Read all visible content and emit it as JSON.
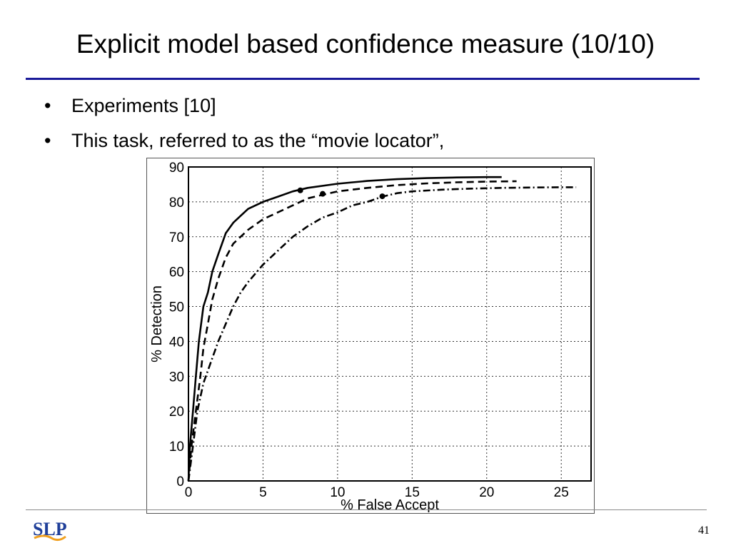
{
  "slide": {
    "title": "Explicit model based confidence measure (10/10)",
    "bullets": [
      {
        "text": "Experiments [10]"
      },
      {
        "text": "This task, referred to as the “movie locator”,"
      }
    ],
    "page_number": "41",
    "logo": {
      "icon": "slp-logo-icon",
      "text": "SLP"
    }
  },
  "chart_data": {
    "type": "line",
    "xlabel": "% False Accept",
    "ylabel": "% Detection",
    "xlim": [
      0,
      27
    ],
    "ylim": [
      0,
      90
    ],
    "xticks": [
      0,
      5,
      10,
      15,
      20,
      25
    ],
    "yticks": [
      0,
      10,
      20,
      30,
      40,
      50,
      60,
      70,
      80,
      90
    ],
    "grid": true,
    "series": [
      {
        "style": "solid",
        "color": "#000000",
        "x": [
          0,
          0.1,
          0.3,
          0.5,
          0.7,
          1.0,
          1.3,
          1.6,
          2.0,
          2.5,
          3.0,
          3.5,
          4.0,
          4.5,
          5.0,
          6.0,
          7.0,
          8.0,
          10.0,
          12.0,
          14.0,
          16.0,
          18.0,
          20.0,
          21.0
        ],
        "y": [
          0,
          10,
          20,
          30,
          40,
          50,
          54,
          60,
          65,
          71,
          74,
          76,
          78,
          79,
          80,
          81.5,
          83,
          84,
          85.2,
          86,
          86.5,
          86.8,
          87,
          87.1,
          87.1
        ],
        "markers": [
          {
            "x": 7.5,
            "y": 83.3
          }
        ]
      },
      {
        "style": "dashed",
        "color": "#000000",
        "x": [
          0,
          0.2,
          0.5,
          0.8,
          1.0,
          1.3,
          1.6,
          2.0,
          2.5,
          3.0,
          3.5,
          4.0,
          5.0,
          6.0,
          7.0,
          8.0,
          9.0,
          10.0,
          12.0,
          14.0,
          16.0,
          18.0,
          20.0,
          22.0
        ],
        "y": [
          0,
          10,
          20,
          30,
          38,
          45,
          52,
          58,
          64,
          68,
          70,
          72,
          75,
          77,
          79,
          81,
          82,
          83,
          84,
          84.8,
          85.3,
          85.6,
          85.8,
          85.9
        ],
        "markers": [
          {
            "x": 9.0,
            "y": 82.3
          }
        ]
      },
      {
        "style": "dashdot",
        "color": "#000000",
        "x": [
          0,
          0.3,
          0.6,
          1.0,
          1.5,
          2.0,
          2.5,
          3.0,
          3.5,
          4.0,
          5.0,
          6.0,
          7.0,
          8.0,
          9.0,
          10.0,
          11.0,
          12.0,
          13.0,
          14.0,
          15.0,
          17.0,
          19.0,
          21.0,
          23.0,
          25.0,
          26.0
        ],
        "y": [
          0,
          10,
          20,
          28,
          34,
          40,
          45,
          50,
          54,
          57,
          62,
          66,
          70,
          73,
          75.5,
          77,
          79,
          80,
          81.5,
          82.5,
          83,
          83.5,
          83.8,
          84,
          84.1,
          84.2,
          84.2
        ],
        "markers": [
          {
            "x": 13.0,
            "y": 81.6
          }
        ]
      }
    ]
  }
}
